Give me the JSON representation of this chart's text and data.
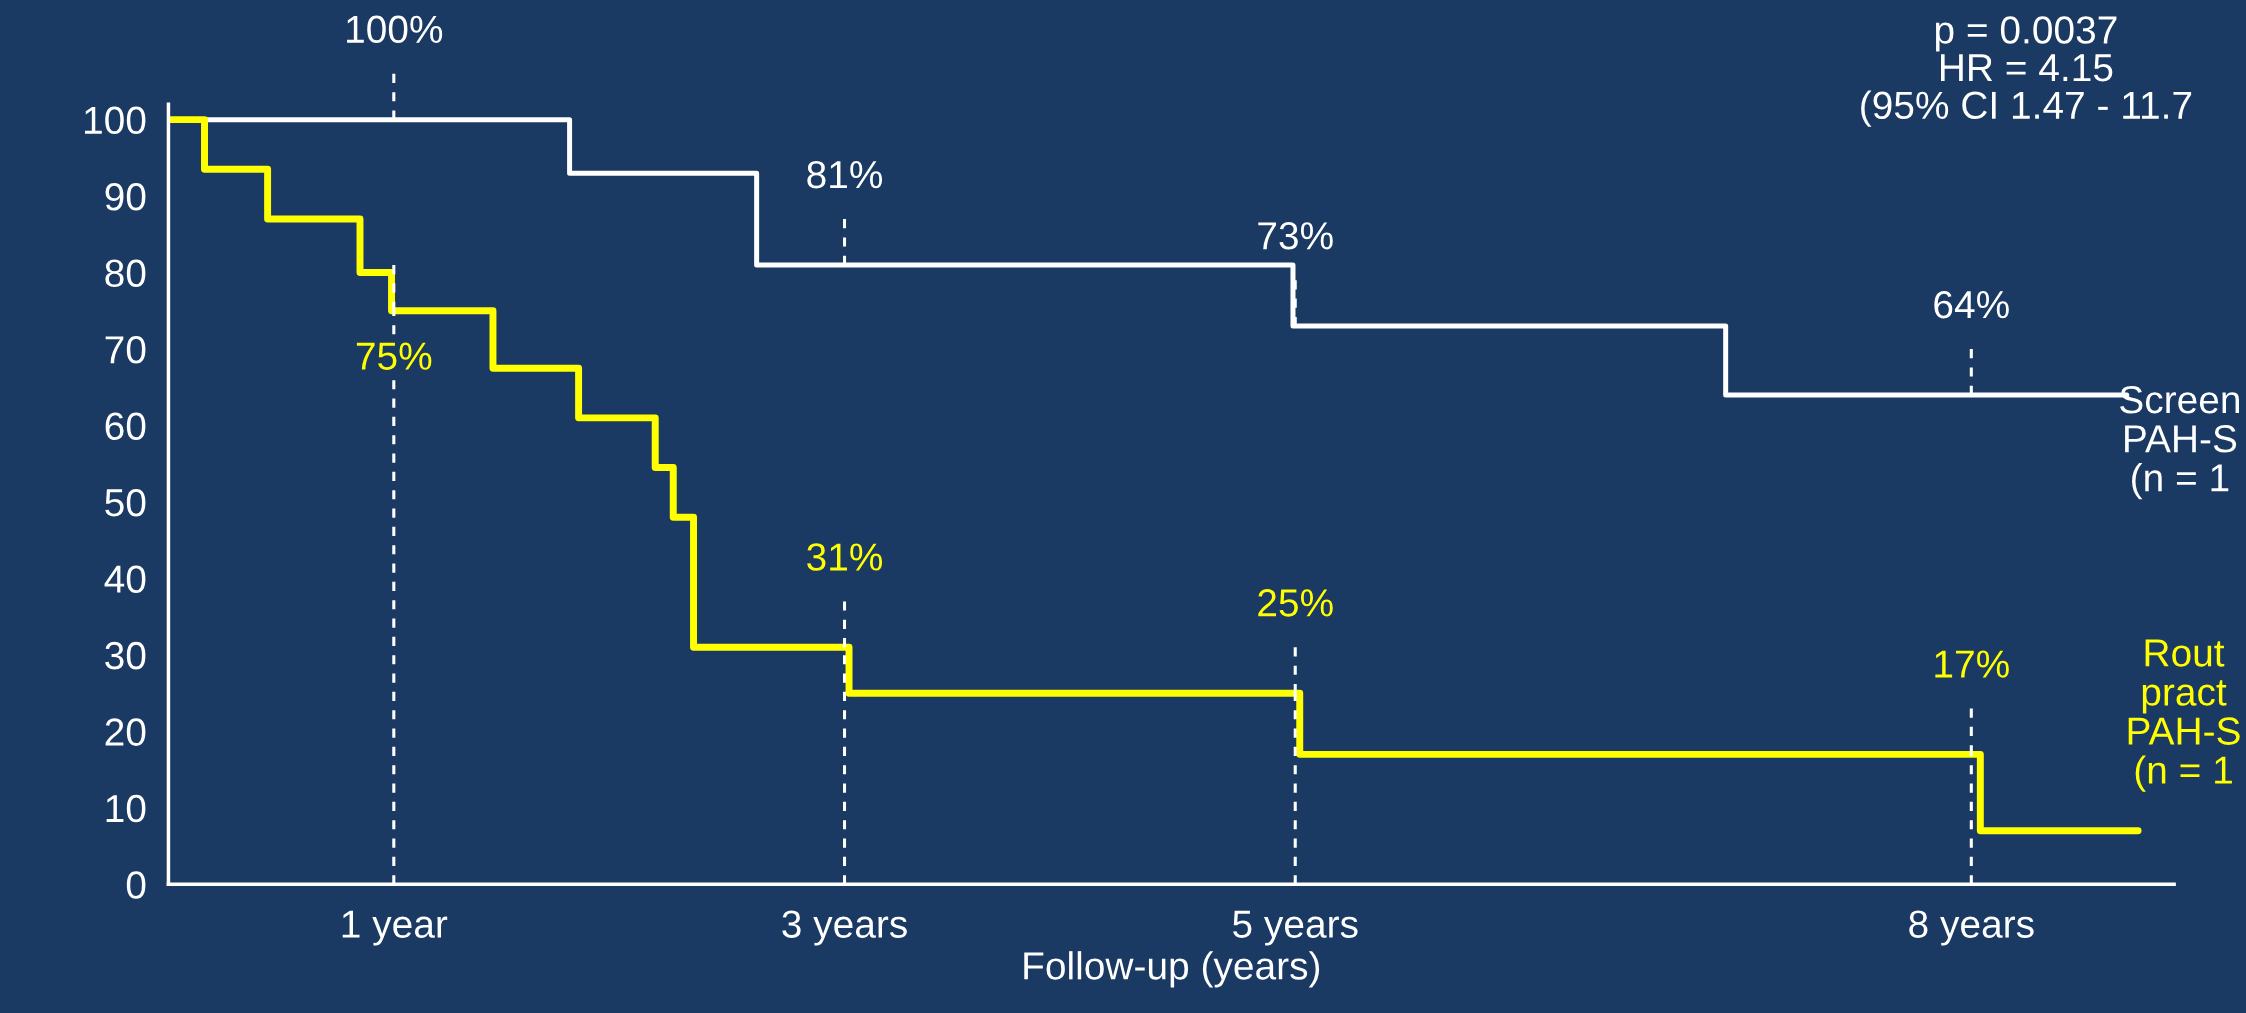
{
  "chart_data": {
    "type": "step",
    "xlabel": "Follow-up (years)",
    "xlim": [
      0,
      8.9
    ],
    "xticks": [
      {
        "value": 1,
        "label": "1 year"
      },
      {
        "value": 3,
        "label": "3 years"
      },
      {
        "value": 5,
        "label": "5 years"
      },
      {
        "value": 8,
        "label": "8 years"
      }
    ],
    "ylim": [
      0,
      102
    ],
    "yticks": [
      0,
      10,
      20,
      30,
      40,
      50,
      60,
      70,
      80,
      90,
      100
    ],
    "grid": false,
    "line_style": "solid",
    "marker": "none",
    "ref_lines": [
      {
        "axis": "x",
        "value": 1,
        "color": "#ffffff",
        "line_style": "dashed"
      },
      {
        "axis": "x",
        "value": 3,
        "color": "#ffffff",
        "line_style": "dashed"
      },
      {
        "axis": "x",
        "value": 5,
        "color": "#ffffff",
        "line_style": "dashed"
      },
      {
        "axis": "x",
        "value": 8,
        "color": "#ffffff",
        "line_style": "dashed"
      }
    ],
    "series": [
      {
        "name": "Screen\nPAH-S\n(n = 1",
        "color": "#ffffff",
        "x": [
          0,
          1.78,
          2.61,
          4.99,
          6.91,
          8.69
        ],
        "values": [
          100,
          93,
          81,
          73,
          64,
          64
        ]
      },
      {
        "name": "Rout\npract\nPAH-S\n(n = 1",
        "color": "#ffff00",
        "x": [
          0,
          0.16,
          0.44,
          0.85,
          0.99,
          1.44,
          1.82,
          2.16,
          2.24,
          2.33,
          3.02,
          5.02,
          8.04,
          8.74
        ],
        "values": [
          100,
          93.5,
          87,
          80,
          75,
          67.5,
          61,
          54.5,
          48,
          31,
          25,
          17,
          7,
          7
        ]
      }
    ],
    "annotations": [
      {
        "text": "100%",
        "x": 1,
        "y": 100
      },
      {
        "text": "81%",
        "x": 3,
        "y": 81
      },
      {
        "text": "73%",
        "x": 5,
        "y": 73
      },
      {
        "text": "64%",
        "x": 8,
        "y": 64
      },
      {
        "text": "75%",
        "x": 1,
        "y": 75
      },
      {
        "text": "31%",
        "x": 3,
        "y": 31
      },
      {
        "text": "25%",
        "x": 5,
        "y": 25
      },
      {
        "text": "17%",
        "x": 8,
        "y": 17
      },
      "p = 0.0037\nHR = 4.15\n(95% CI 1.47 - 11.7"
    ]
  }
}
